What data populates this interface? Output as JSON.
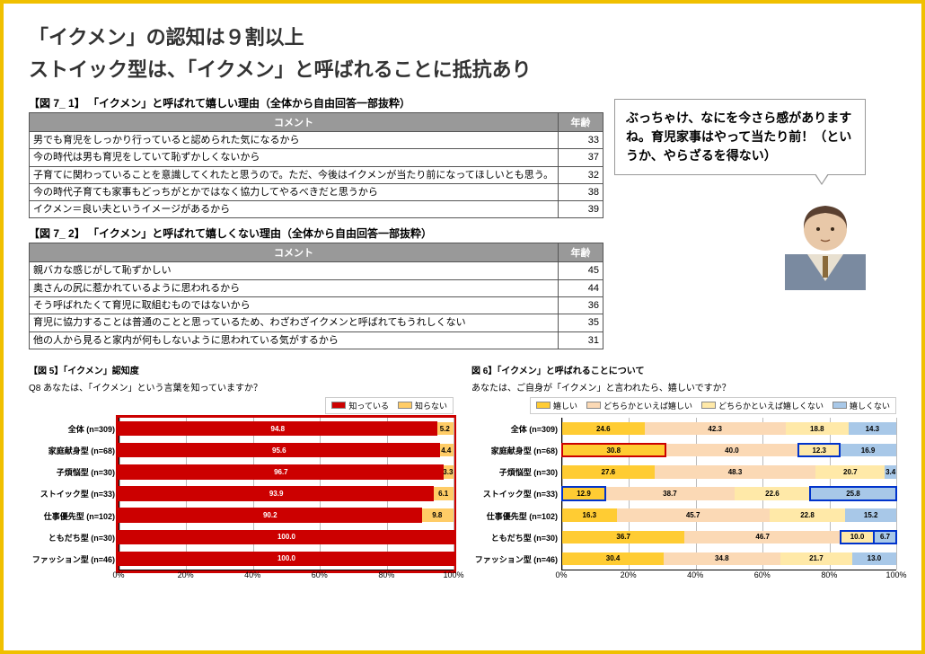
{
  "title_line1": "「イクメン」の認知は９割以上",
  "title_line2": "ストイック型は、「イクメン」と呼ばれることに抵抗あり",
  "table1": {
    "caption": "【図 7_ 1】 「イクメン」と呼ばれて嬉しい理由（全体から自由回答一部抜粋）",
    "col_comment": "コメント",
    "col_age": "年齢",
    "rows": [
      {
        "c": "男でも育児をしっかり行っていると認められた気になるから",
        "a": "33"
      },
      {
        "c": "今の時代は男も育児をしていて恥ずかしくないから",
        "a": "37"
      },
      {
        "c": "子育てに関わっていることを意識してくれたと思うので。ただ、今後はイクメンが当たり前になってほしいとも思う。",
        "a": "32"
      },
      {
        "c": "今の時代子育ても家事もどっちがとかではなく協力してやるべきだと思うから",
        "a": "38"
      },
      {
        "c": "イクメン＝良い夫というイメージがあるから",
        "a": "39"
      }
    ]
  },
  "table2": {
    "caption": "【図 7_ 2】 「イクメン」と呼ばれて嬉しくない理由（全体から自由回答一部抜粋）",
    "col_comment": "コメント",
    "col_age": "年齢",
    "rows": [
      {
        "c": "親バカな感じがして恥ずかしい",
        "a": "45"
      },
      {
        "c": "奥さんの尻に惹かれているように思われるから",
        "a": "44"
      },
      {
        "c": "そう呼ばれたくて育児に取組むものではないから",
        "a": "36"
      },
      {
        "c": "育児に協力することは普通のことと思っているため、わざわざイクメンと呼ばれてもうれしくない",
        "a": "35"
      },
      {
        "c": "他の人から見ると家内が何もしないように思われている気がするから",
        "a": "31"
      }
    ]
  },
  "speech": "ぶっちゃけ、なにを今さら感がありますね。育児家事はやって当たり前！（というか、やらざるを得ない）",
  "chart_left": {
    "title": "【図 5】「イクメン」認知度",
    "sub": "Q8 あなたは、「イクメン」という言葉を知っていますか？",
    "legend": [
      {
        "label": "知っている",
        "color": "#cc0000"
      },
      {
        "label": "知らない",
        "color": "#ffcc66"
      }
    ],
    "categories": [
      "全体 (n=309)",
      "家庭献身型 (n=68)",
      "子煩悩型 (n=30)",
      "ストイック型 (n=33)",
      "仕事優先型 (n=102)",
      "ともだち型 (n=30)",
      "ファッション型 (n=46)"
    ],
    "series_colors": [
      "#cc0000",
      "#ffcc66"
    ],
    "data": [
      [
        94.8,
        5.2
      ],
      [
        95.6,
        4.4
      ],
      [
        96.7,
        3.3
      ],
      [
        93.9,
        6.1
      ],
      [
        90.2,
        9.8
      ],
      [
        100.0,
        0
      ],
      [
        100.0,
        0
      ]
    ],
    "outline_red_rows": "all_first_seg",
    "xticks": [
      "0%",
      "20%",
      "40%",
      "60%",
      "80%",
      "100%"
    ]
  },
  "chart_right": {
    "title": "図 6】「イクメン」と呼ばれることについて",
    "sub": "あなたは、ご自身が「イクメン」と言われたら、嬉しいですか？",
    "legend": [
      {
        "label": "嬉しい",
        "color": "#ffcc33"
      },
      {
        "label": "どちらかといえば嬉しい",
        "color": "#fbd9b5"
      },
      {
        "label": "どちらかといえば嬉しくない",
        "color": "#ffe9a8"
      },
      {
        "label": "嬉しくない",
        "color": "#a8c8e8"
      }
    ],
    "categories": [
      "全体 (n=309)",
      "家庭献身型 (n=68)",
      "子煩悩型 (n=30)",
      "ストイック型 (n=33)",
      "仕事優先型 (n=102)",
      "ともだち型 (n=30)",
      "ファッション型 (n=46)"
    ],
    "series_colors": [
      "#ffcc33",
      "#fbd9b5",
      "#ffe9a8",
      "#a8c8e8"
    ],
    "data": [
      [
        24.6,
        42.3,
        18.8,
        14.3
      ],
      [
        30.8,
        40.0,
        12.3,
        16.9
      ],
      [
        27.6,
        48.3,
        20.7,
        3.4
      ],
      [
        12.9,
        38.7,
        22.6,
        25.8
      ],
      [
        16.3,
        45.7,
        22.8,
        15.2
      ],
      [
        36.7,
        46.7,
        10.0,
        6.7
      ],
      [
        30.4,
        34.8,
        21.7,
        13.0
      ]
    ],
    "blue_outline": [
      [
        1,
        0
      ],
      [
        3,
        0
      ],
      [
        3,
        3
      ],
      [
        5,
        2
      ],
      [
        5,
        3
      ],
      [
        1,
        2
      ]
    ],
    "red_outline": [
      [
        1,
        0
      ]
    ],
    "xticks": [
      "0%",
      "20%",
      "40%",
      "60%",
      "80%",
      "100%"
    ]
  }
}
